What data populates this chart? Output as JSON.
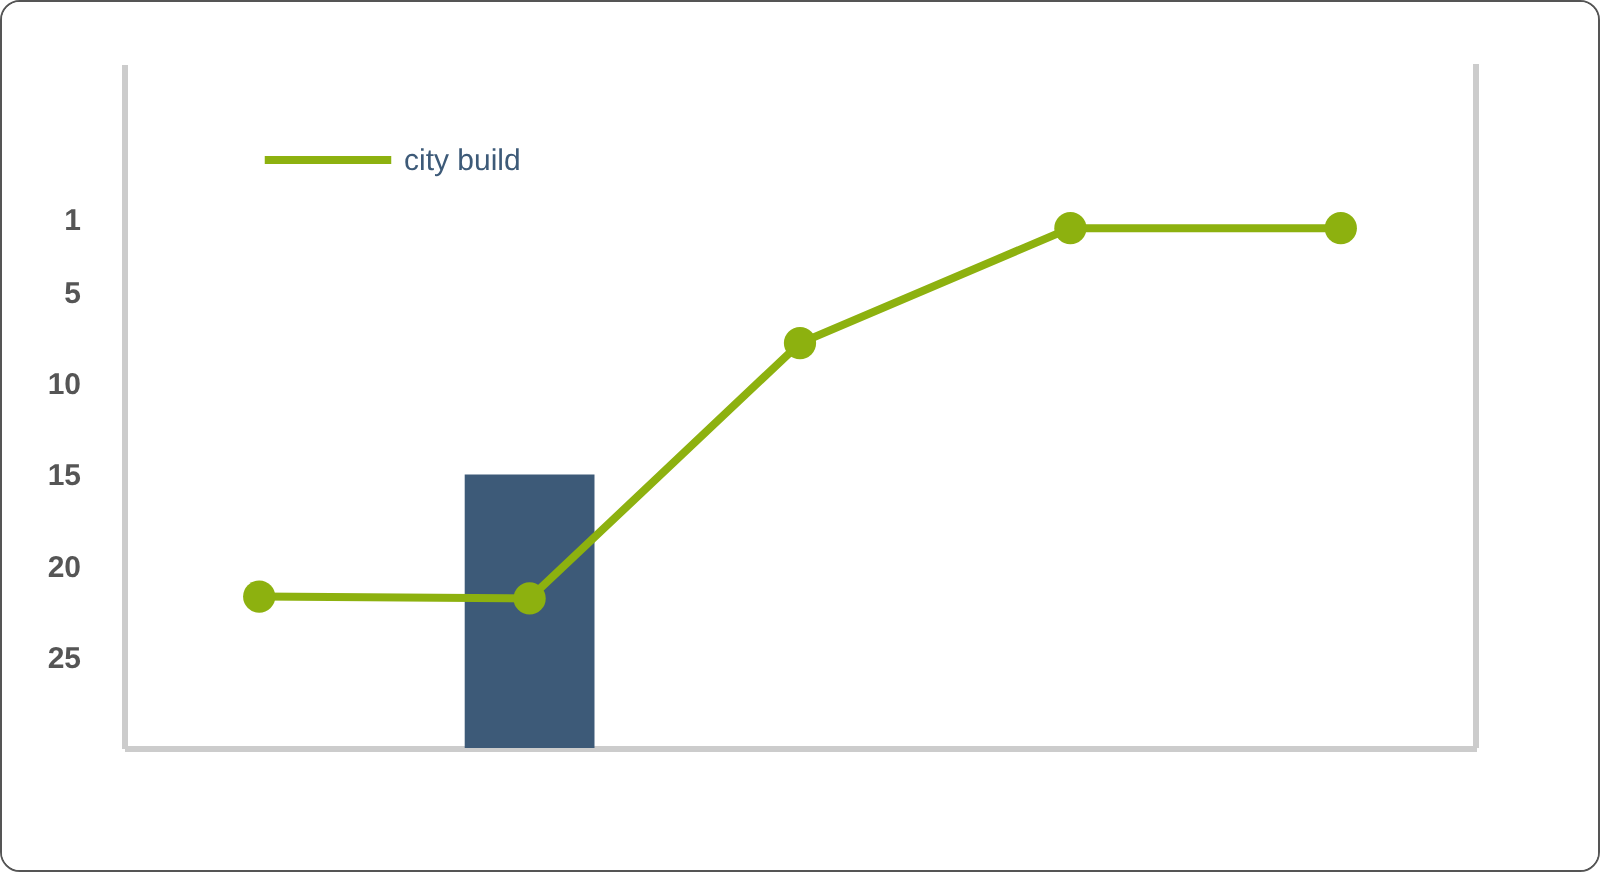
{
  "chart_data": {
    "type": "line",
    "categories": [
      null,
      null,
      null,
      null,
      null
    ],
    "series": [
      {
        "type": "bar",
        "color": "#3d5a78",
        "base": [
          null,
          15,
          null,
          null,
          null
        ],
        "values": [
          null,
          15,
          null,
          null,
          null
        ]
      },
      {
        "name": "city build",
        "color": "#8db10f",
        "values": [
          21.7,
          21.8,
          7.8,
          1.5,
          1.5
        ]
      }
    ],
    "ylim": [
      30,
      -7.5
    ],
    "yticks": [
      1,
      5,
      10,
      15,
      20,
      25
    ],
    "tick_labels": "y",
    "grid": false,
    "legend": "top left",
    "marker": "circle",
    "line_style": "solid"
  }
}
